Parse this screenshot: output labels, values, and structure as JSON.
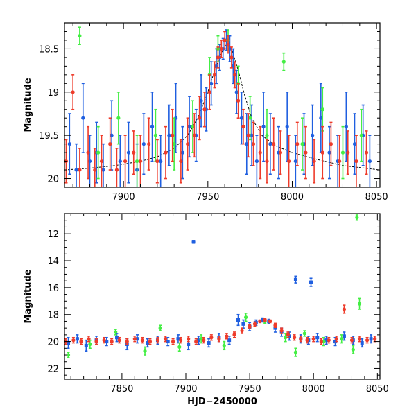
{
  "figure": {
    "colors": {
      "blue": "#1f5fe0",
      "green": "#44ee44",
      "red": "#ee3b2a",
      "fit": "#000000"
    }
  },
  "chart_data": [
    {
      "type": "scatter",
      "title": "",
      "xlabel": "",
      "ylabel": "Magnitude",
      "xlim": [
        7865,
        8052
      ],
      "ylim": [
        20.1,
        18.2
      ],
      "y_inverted": true,
      "x_ticks": [
        7900,
        7950,
        8000,
        8050
      ],
      "x_tick_labels": [
        "7900",
        "7950",
        "8000",
        "8050"
      ],
      "y_ticks": [
        18.5,
        19,
        19.5,
        20
      ],
      "y_tick_labels": [
        "18.5",
        "19",
        "19.5",
        "20"
      ],
      "grid": false,
      "legend": "none",
      "series": [
        {
          "color": "blue",
          "x": [
            7868,
            7872,
            7876,
            7880,
            7884,
            7888,
            7893,
            7898,
            7903,
            7908,
            7912,
            7917,
            7922,
            7927,
            7931,
            7935,
            7939,
            7943,
            7946,
            7949,
            7952,
            7955,
            7957,
            7959,
            7961,
            7963,
            7965,
            7967,
            7970,
            7973,
            7976,
            7979,
            7983,
            7987,
            7992,
            7997,
            8002,
            8007,
            8012,
            8017,
            8022,
            8027,
            8032,
            8037,
            8042,
            8046
          ],
          "y": [
            19.6,
            19.9,
            19.3,
            19.8,
            19.7,
            19.9,
            19.5,
            19.8,
            19.7,
            19.9,
            19.6,
            19.4,
            19.8,
            19.5,
            19.3,
            19.7,
            19.4,
            19.5,
            19.1,
            19.2,
            18.9,
            18.7,
            18.6,
            18.5,
            18.4,
            18.5,
            18.7,
            19.0,
            19.3,
            19.6,
            19.5,
            19.8,
            19.4,
            19.6,
            19.7,
            19.4,
            19.8,
            19.6,
            19.5,
            19.3,
            19.7,
            19.8,
            19.4,
            19.6,
            19.5,
            19.8
          ],
          "err": [
            0.35,
            0.3,
            0.4,
            0.3,
            0.35,
            0.3,
            0.4,
            0.3,
            0.35,
            0.3,
            0.35,
            0.4,
            0.3,
            0.35,
            0.4,
            0.3,
            0.35,
            0.3,
            0.3,
            0.25,
            0.25,
            0.2,
            0.15,
            0.12,
            0.12,
            0.15,
            0.2,
            0.25,
            0.3,
            0.35,
            0.35,
            0.3,
            0.4,
            0.35,
            0.3,
            0.4,
            0.3,
            0.35,
            0.35,
            0.4,
            0.3,
            0.3,
            0.4,
            0.35,
            0.35,
            0.3
          ]
        },
        {
          "color": "green",
          "x": [
            7874,
            7885,
            7897,
            7908,
            7919,
            7930,
            7941,
            7951,
            7956,
            7962,
            7968,
            7975,
            7985,
            7995,
            8006,
            8018,
            8030,
            8041
          ],
          "y": [
            18.35,
            19.7,
            19.3,
            19.8,
            19.5,
            19.6,
            19.4,
            18.8,
            18.5,
            18.4,
            18.9,
            19.3,
            19.5,
            18.65,
            19.6,
            19.2,
            19.7,
            19.5
          ],
          "err": [
            0.1,
            0.3,
            0.3,
            0.3,
            0.3,
            0.3,
            0.3,
            0.2,
            0.15,
            0.12,
            0.2,
            0.25,
            0.3,
            0.1,
            0.3,
            0.25,
            0.3,
            0.3
          ]
        },
        {
          "color": "red",
          "x": [
            7866,
            7870,
            7874,
            7879,
            7883,
            7887,
            7892,
            7896,
            7901,
            7906,
            7910,
            7915,
            7920,
            7925,
            7929,
            7934,
            7938,
            7942,
            7945,
            7948,
            7951,
            7954,
            7956,
            7958,
            7960,
            7962,
            7964,
            7966,
            7968,
            7971,
            7974,
            7977,
            7981,
            7985,
            7989,
            7993,
            7998,
            8003,
            8008,
            8013,
            8018,
            8023,
            8028,
            8033,
            8038,
            8044
          ],
          "y": [
            19.8,
            19.0,
            19.9,
            19.7,
            19.9,
            19.8,
            19.6,
            19.9,
            19.8,
            19.7,
            19.8,
            19.6,
            19.8,
            19.7,
            19.5,
            19.8,
            19.6,
            19.5,
            19.3,
            19.2,
            19.0,
            18.8,
            18.6,
            18.5,
            18.4,
            18.45,
            18.6,
            18.8,
            19.1,
            19.4,
            19.5,
            19.6,
            19.7,
            19.8,
            19.6,
            19.7,
            19.8,
            19.6,
            19.7,
            19.8,
            19.7,
            19.6,
            19.8,
            19.7,
            19.8,
            19.7
          ],
          "err": [
            0.25,
            0.2,
            0.25,
            0.3,
            0.25,
            0.3,
            0.3,
            0.25,
            0.3,
            0.25,
            0.3,
            0.3,
            0.25,
            0.3,
            0.3,
            0.25,
            0.3,
            0.25,
            0.25,
            0.2,
            0.2,
            0.15,
            0.12,
            0.1,
            0.1,
            0.1,
            0.12,
            0.15,
            0.2,
            0.2,
            0.25,
            0.25,
            0.3,
            0.25,
            0.3,
            0.25,
            0.3,
            0.25,
            0.3,
            0.25,
            0.3,
            0.25,
            0.3,
            0.25,
            0.3,
            0.25
          ]
        }
      ],
      "fit_curve": {
        "x": [
          7865,
          7880,
          7895,
          7910,
          7920,
          7930,
          7938,
          7944,
          7950,
          7954,
          7958,
          7961,
          7964,
          7968,
          7972,
          7976,
          7982,
          7990,
          8000,
          8015,
          8030,
          8052
        ],
        "y": [
          19.9,
          19.88,
          19.85,
          19.8,
          19.75,
          19.65,
          19.5,
          19.3,
          19.0,
          18.75,
          18.55,
          18.45,
          18.5,
          18.75,
          19.05,
          19.3,
          19.5,
          19.62,
          19.7,
          19.78,
          19.85,
          19.9
        ]
      }
    },
    {
      "type": "scatter",
      "title": "",
      "xlabel": "HJD−2450000",
      "ylabel": "Magnitude",
      "xlim": [
        7805,
        8052
      ],
      "ylim": [
        22.8,
        10.5
      ],
      "y_inverted": true,
      "x_ticks": [
        7850,
        7900,
        7950,
        8000,
        8050
      ],
      "x_tick_labels": [
        "7850",
        "7900",
        "7950",
        "8000",
        "8050"
      ],
      "y_ticks": [
        12,
        14,
        16,
        18,
        20,
        22
      ],
      "y_tick_labels": [
        "12",
        "14",
        "16",
        "18",
        "20",
        "22"
      ],
      "grid": false,
      "legend": "none",
      "series": [
        {
          "color": "blue",
          "x": [
            7808,
            7815,
            7822,
            7830,
            7838,
            7846,
            7854,
            7862,
            7870,
            7878,
            7886,
            7894,
            7902,
            7906,
            7910,
            7918,
            7926,
            7934,
            7941,
            7945,
            7950,
            7955,
            7960,
            7965,
            7970,
            7975,
            7981,
            7986,
            7990,
            7996,
            7998,
            8003,
            8010,
            8017,
            8024,
            8031,
            8038,
            8045
          ],
          "y": [
            20.1,
            19.8,
            20.3,
            19.9,
            20.0,
            19.7,
            20.2,
            19.8,
            20.1,
            19.9,
            20.0,
            19.8,
            20.2,
            12.6,
            19.9,
            20.1,
            19.7,
            19.9,
            18.4,
            18.7,
            18.9,
            18.6,
            18.4,
            18.5,
            19.0,
            19.3,
            19.6,
            15.4,
            19.8,
            19.9,
            15.6,
            19.7,
            19.9,
            20.0,
            19.6,
            19.9,
            20.1,
            19.8
          ],
          "err": [
            0.4,
            0.3,
            0.4,
            0.3,
            0.3,
            0.3,
            0.4,
            0.3,
            0.3,
            0.3,
            0.3,
            0.3,
            0.4,
            0.1,
            0.3,
            0.3,
            0.3,
            0.3,
            0.4,
            0.3,
            0.3,
            0.2,
            0.15,
            0.15,
            0.3,
            0.3,
            0.3,
            0.25,
            0.3,
            0.3,
            0.3,
            0.3,
            0.3,
            0.3,
            0.3,
            0.3,
            0.3,
            0.3
          ]
        },
        {
          "color": "green",
          "x": [
            7808,
            7825,
            7845,
            7868,
            7880,
            7895,
            7912,
            7930,
            7947,
            7962,
            7978,
            7986,
            7993,
            8008,
            8022,
            8031,
            8034,
            8036
          ],
          "y": [
            21.0,
            20.2,
            19.3,
            20.7,
            19.0,
            20.4,
            19.8,
            20.3,
            18.2,
            18.5,
            19.7,
            20.8,
            19.4,
            20.0,
            19.8,
            20.6,
            10.8,
            17.2
          ],
          "err": [
            0.2,
            0.3,
            0.2,
            0.3,
            0.2,
            0.3,
            0.3,
            0.3,
            0.3,
            0.15,
            0.3,
            0.3,
            0.2,
            0.3,
            0.3,
            0.3,
            0.2,
            0.4
          ]
        },
        {
          "color": "red",
          "x": [
            7806,
            7812,
            7818,
            7824,
            7830,
            7836,
            7842,
            7848,
            7854,
            7860,
            7866,
            7872,
            7878,
            7884,
            7890,
            7896,
            7902,
            7908,
            7914,
            7920,
            7926,
            7932,
            7938,
            7944,
            7950,
            7954,
            7958,
            7962,
            7966,
            7970,
            7975,
            7980,
            7985,
            7990,
            7995,
            8000,
            8006,
            8012,
            8018,
            8024,
            8030,
            8036,
            8042,
            8048
          ],
          "y": [
            20.0,
            19.9,
            20.0,
            19.8,
            20.0,
            19.9,
            20.0,
            19.9,
            20.0,
            19.8,
            19.9,
            20.0,
            19.9,
            19.8,
            20.0,
            19.9,
            19.8,
            20.0,
            19.9,
            19.7,
            19.8,
            19.6,
            19.5,
            19.2,
            18.9,
            18.7,
            18.5,
            18.4,
            18.5,
            18.8,
            19.2,
            19.5,
            19.7,
            19.8,
            19.9,
            19.8,
            20.0,
            19.9,
            19.8,
            17.6,
            19.9,
            19.8,
            19.9,
            19.8
          ],
          "err": [
            0.2,
            0.2,
            0.2,
            0.2,
            0.2,
            0.2,
            0.2,
            0.2,
            0.2,
            0.2,
            0.2,
            0.2,
            0.2,
            0.2,
            0.2,
            0.2,
            0.2,
            0.2,
            0.2,
            0.2,
            0.2,
            0.2,
            0.2,
            0.2,
            0.15,
            0.15,
            0.1,
            0.1,
            0.1,
            0.15,
            0.2,
            0.2,
            0.2,
            0.2,
            0.2,
            0.2,
            0.2,
            0.2,
            0.2,
            0.3,
            0.2,
            0.2,
            0.2,
            0.2
          ]
        }
      ]
    }
  ]
}
